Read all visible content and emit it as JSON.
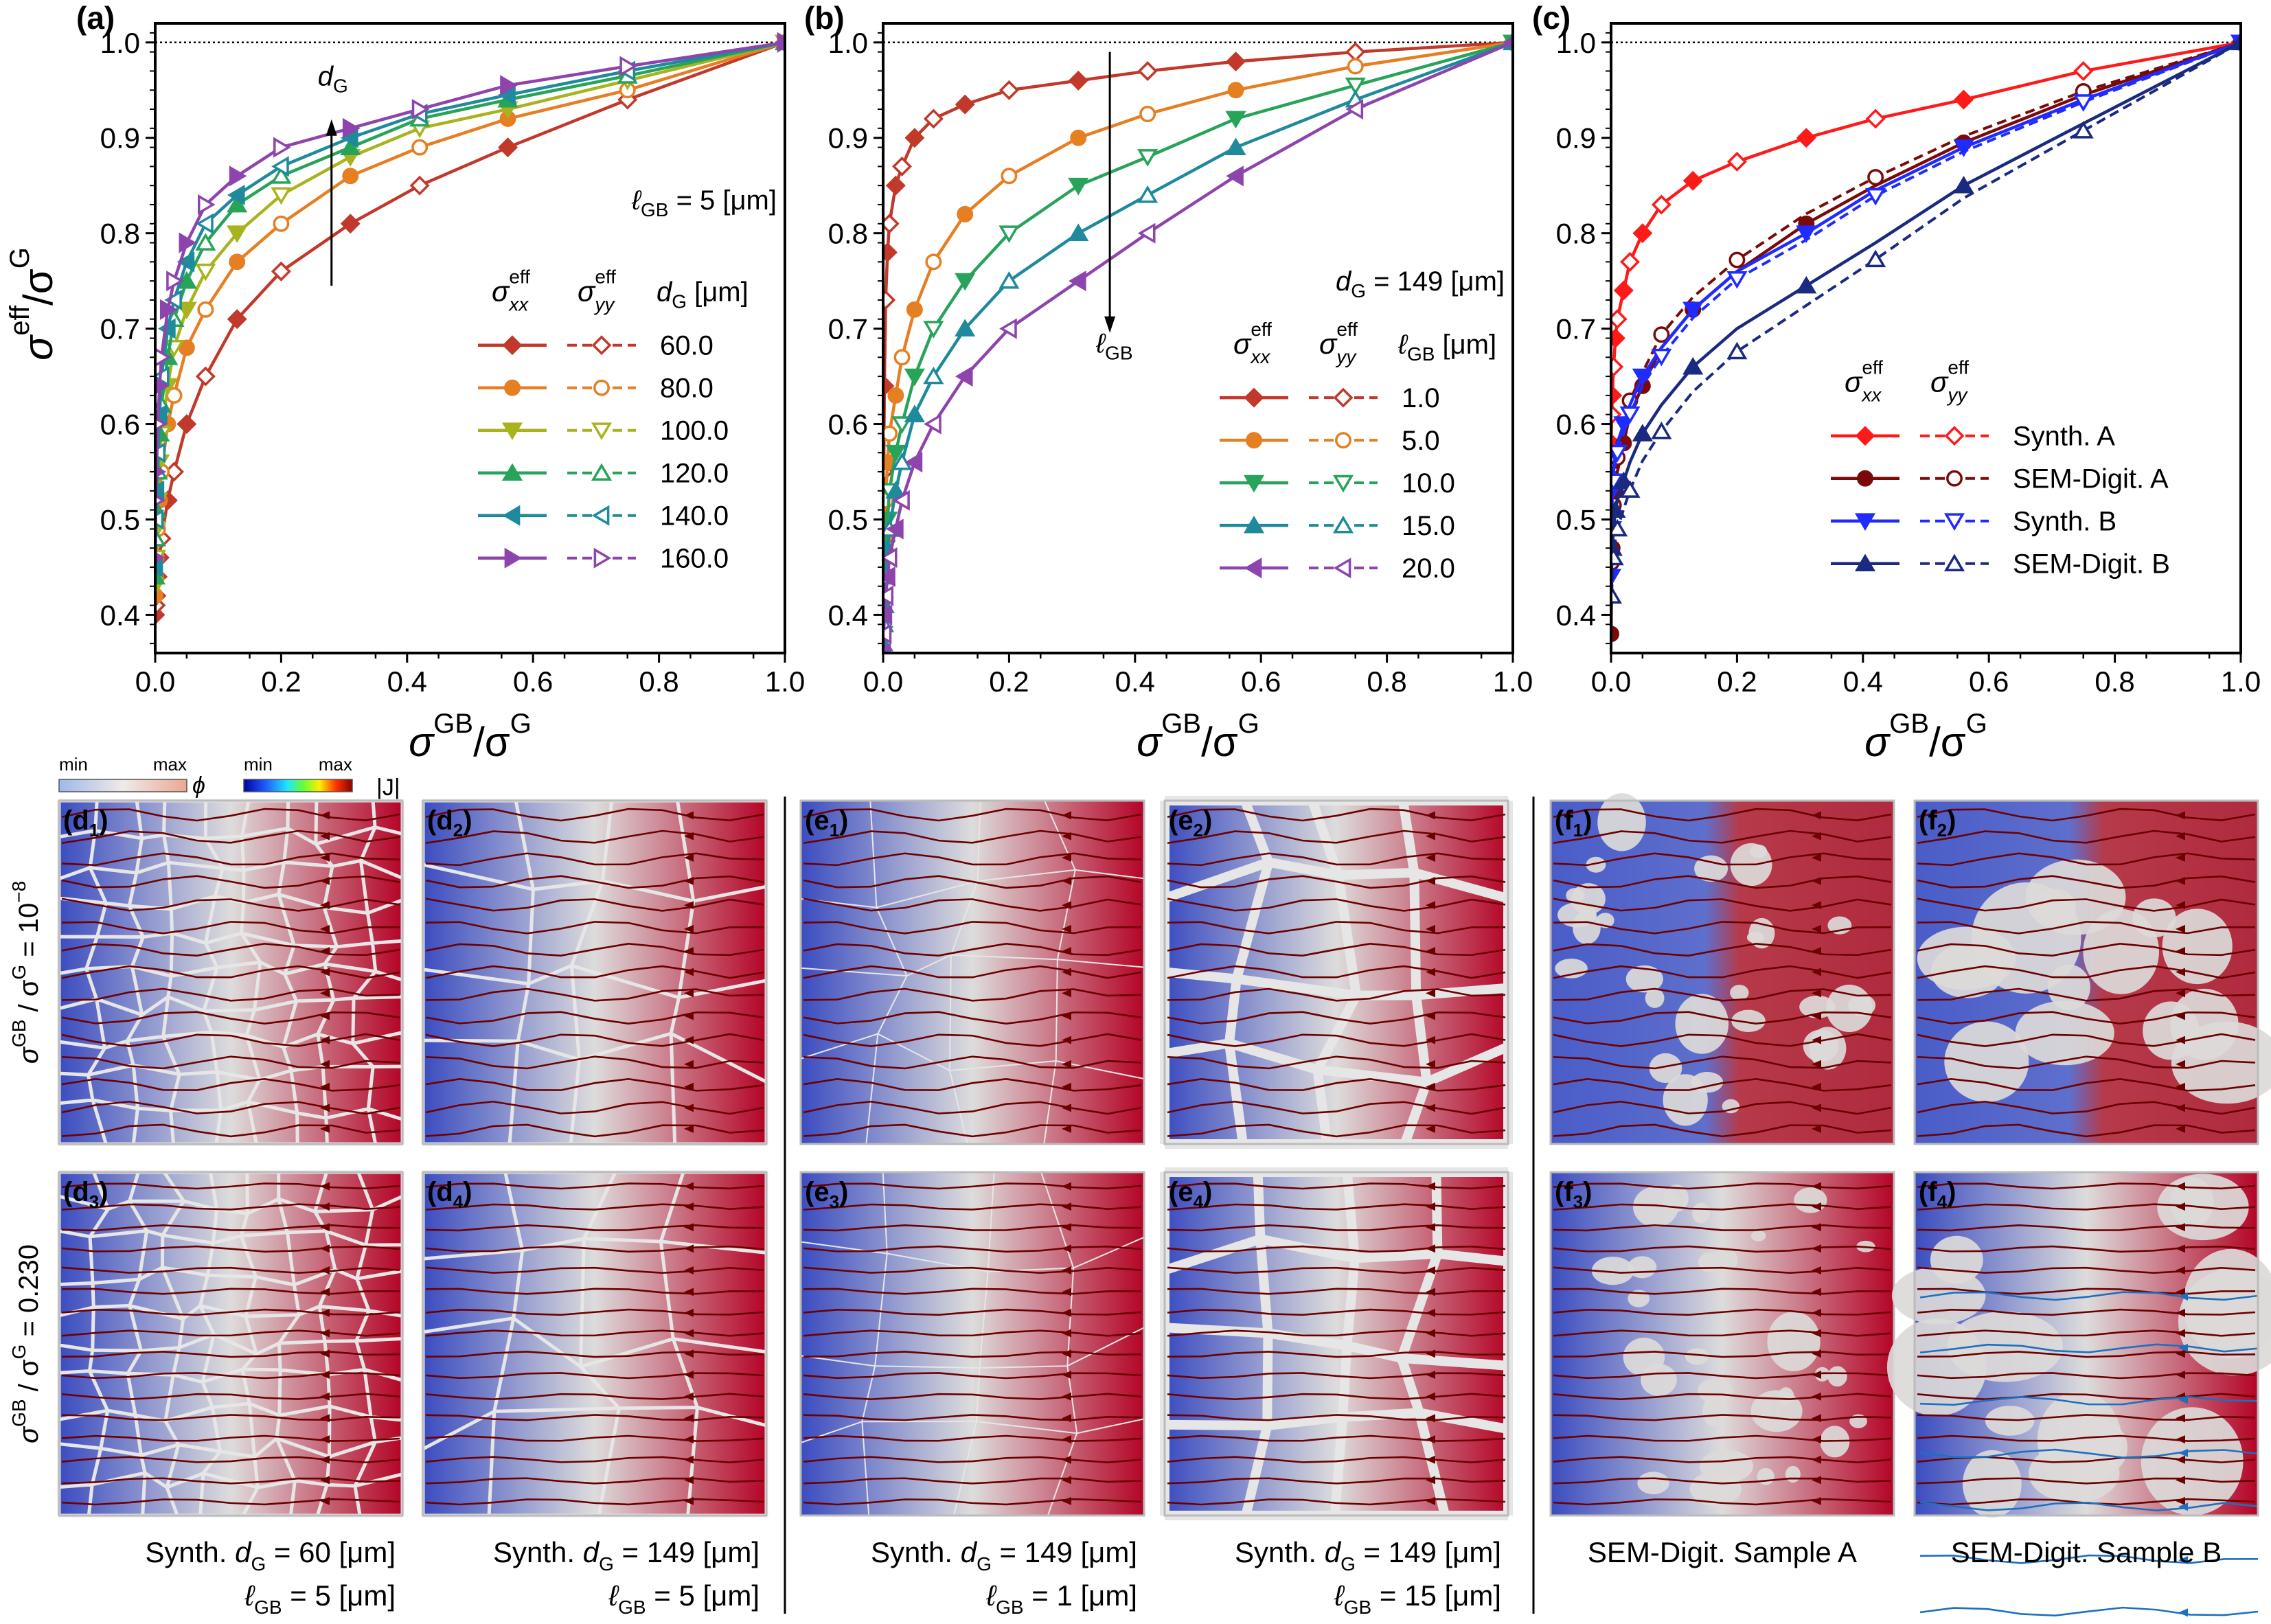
{
  "colors": {
    "red": "#c0392b",
    "orange": "#e67e22",
    "olive": "#a8b31e",
    "green": "#27a35a",
    "teal": "#1f8a9b",
    "purple": "#8e44ad",
    "synthA": "#ff1a1a",
    "semA": "#7a0a0a",
    "synthB": "#1f2bff",
    "semB": "#1a2a80",
    "cold": "#3b4cc0",
    "warm": "#b40426",
    "mid": "#dddcdc",
    "stream": "#6b0000"
  },
  "chart_data": [
    {
      "type": "line",
      "panel": "a",
      "label": "(a)",
      "xlabel_main": "σ",
      "xlabel_sup1": "GB",
      "xlabel_mid": "/σ",
      "xlabel_sup2": "G",
      "ylabel_main": "σ",
      "ylabel_sup1": "eff",
      "ylabel_mid": "/σ",
      "ylabel_sup2": "G",
      "xlim": [
        0,
        1
      ],
      "ylim": [
        0.36,
        1.02
      ],
      "xticks": [
        "0.0",
        "0.2",
        "0.4",
        "0.6",
        "0.8",
        "1.0"
      ],
      "yticks": [
        "0.4",
        "0.5",
        "0.6",
        "0.7",
        "0.8",
        "0.9",
        "1.0"
      ],
      "reference_line": 1.0,
      "arrow_label": "d",
      "arrow_sub": "G",
      "param_text": "ℓ",
      "param_sub": "GB",
      "param_rest": " = 5 [μm]",
      "legend_col1": "σ",
      "legend_col1_sub": "xx",
      "legend_col1_sup": "eff",
      "legend_col2": "σ",
      "legend_col2_sub": "yy",
      "legend_col2_sup": "eff",
      "legend_col3": "d",
      "legend_col3_sub": "G",
      "legend_col3_rest": " [μm]",
      "series": [
        {
          "name": "60.0",
          "color": "red",
          "marker": "diamond",
          "y0": 0.4
        },
        {
          "name": "80.0",
          "color": "orange",
          "marker": "circle",
          "y0": 0.42
        },
        {
          "name": "100.0",
          "color": "olive",
          "marker": "tri-down",
          "y0": 0.43
        },
        {
          "name": "120.0",
          "color": "green",
          "marker": "tri-up",
          "y0": 0.44
        },
        {
          "name": "140.0",
          "color": "teal",
          "marker": "tri-left",
          "y0": 0.45
        },
        {
          "name": "160.0",
          "color": "purple",
          "marker": "tri-right",
          "y0": 0.46
        }
      ],
      "x": [
        0,
        0.001,
        0.002,
        0.004,
        0.007,
        0.01,
        0.02,
        0.03,
        0.05,
        0.08,
        0.13,
        0.2,
        0.31,
        0.42,
        0.56,
        0.75,
        1.0
      ],
      "values": [
        [
          0.4,
          0.41,
          0.42,
          0.44,
          0.46,
          0.48,
          0.52,
          0.55,
          0.6,
          0.65,
          0.71,
          0.76,
          0.81,
          0.85,
          0.89,
          0.94,
          1.0
        ],
        [
          0.42,
          0.44,
          0.46,
          0.49,
          0.52,
          0.55,
          0.6,
          0.63,
          0.68,
          0.72,
          0.77,
          0.81,
          0.86,
          0.89,
          0.92,
          0.95,
          1.0
        ],
        [
          0.43,
          0.46,
          0.49,
          0.52,
          0.56,
          0.59,
          0.64,
          0.68,
          0.72,
          0.76,
          0.8,
          0.84,
          0.88,
          0.91,
          0.93,
          0.96,
          1.0
        ],
        [
          0.44,
          0.48,
          0.51,
          0.55,
          0.59,
          0.62,
          0.67,
          0.71,
          0.75,
          0.79,
          0.83,
          0.86,
          0.89,
          0.92,
          0.94,
          0.965,
          1.0
        ],
        [
          0.45,
          0.5,
          0.53,
          0.57,
          0.61,
          0.65,
          0.7,
          0.73,
          0.77,
          0.81,
          0.84,
          0.87,
          0.9,
          0.925,
          0.945,
          0.97,
          1.0
        ],
        [
          0.46,
          0.52,
          0.55,
          0.6,
          0.64,
          0.67,
          0.72,
          0.75,
          0.79,
          0.83,
          0.86,
          0.89,
          0.91,
          0.93,
          0.955,
          0.975,
          1.0
        ]
      ]
    },
    {
      "type": "line",
      "panel": "b",
      "label": "(b)",
      "xlabel_main": "σ",
      "xlabel_sup1": "GB",
      "xlabel_mid": "/σ",
      "xlabel_sup2": "G",
      "xlim": [
        0,
        1
      ],
      "ylim": [
        0.36,
        1.02
      ],
      "xticks": [
        "0.0",
        "0.2",
        "0.4",
        "0.6",
        "0.8",
        "1.0"
      ],
      "yticks": [
        "0.4",
        "0.5",
        "0.6",
        "0.7",
        "0.8",
        "0.9",
        "1.0"
      ],
      "reference_line": 1.0,
      "arrow_label": "ℓ",
      "arrow_sub": "GB",
      "param_text": "d",
      "param_sub": "G",
      "param_rest": " = 149 [μm]",
      "legend_col1": "σ",
      "legend_col1_sub": "xx",
      "legend_col1_sup": "eff",
      "legend_col2": "σ",
      "legend_col2_sub": "yy",
      "legend_col2_sup": "eff",
      "legend_col3": "ℓ",
      "legend_col3_sub": "GB",
      "legend_col3_rest": " [μm]",
      "series": [
        {
          "name": "1.0",
          "color": "red",
          "marker": "diamond"
        },
        {
          "name": "5.0",
          "color": "orange",
          "marker": "circle"
        },
        {
          "name": "10.0",
          "color": "green",
          "marker": "tri-down"
        },
        {
          "name": "15.0",
          "color": "teal",
          "marker": "tri-up"
        },
        {
          "name": "20.0",
          "color": "purple",
          "marker": "tri-left"
        }
      ],
      "x": [
        0,
        0.001,
        0.002,
        0.004,
        0.007,
        0.01,
        0.02,
        0.03,
        0.05,
        0.08,
        0.13,
        0.2,
        0.31,
        0.42,
        0.56,
        0.75,
        1.0
      ],
      "values": [
        [
          0.42,
          0.55,
          0.64,
          0.73,
          0.78,
          0.81,
          0.85,
          0.87,
          0.9,
          0.92,
          0.935,
          0.95,
          0.96,
          0.97,
          0.98,
          0.99,
          1.0
        ],
        [
          0.4,
          0.44,
          0.48,
          0.52,
          0.56,
          0.59,
          0.63,
          0.67,
          0.72,
          0.77,
          0.82,
          0.86,
          0.9,
          0.925,
          0.95,
          0.975,
          1.0
        ],
        [
          0.38,
          0.41,
          0.44,
          0.47,
          0.5,
          0.53,
          0.57,
          0.6,
          0.65,
          0.7,
          0.75,
          0.8,
          0.85,
          0.88,
          0.92,
          0.955,
          1.0
        ],
        [
          0.37,
          0.39,
          0.41,
          0.44,
          0.47,
          0.49,
          0.53,
          0.56,
          0.61,
          0.65,
          0.7,
          0.75,
          0.8,
          0.84,
          0.89,
          0.94,
          1.0
        ],
        [
          0.36,
          0.38,
          0.4,
          0.42,
          0.44,
          0.46,
          0.49,
          0.52,
          0.56,
          0.6,
          0.65,
          0.7,
          0.75,
          0.8,
          0.86,
          0.93,
          1.0
        ]
      ]
    },
    {
      "type": "line",
      "panel": "c",
      "label": "(c)",
      "xlabel_main": "σ",
      "xlabel_sup1": "GB",
      "xlabel_mid": "/σ",
      "xlabel_sup2": "G",
      "xlim": [
        0,
        1
      ],
      "ylim": [
        0.36,
        1.02
      ],
      "xticks": [
        "0.0",
        "0.2",
        "0.4",
        "0.6",
        "0.8",
        "1.0"
      ],
      "yticks": [
        "0.4",
        "0.5",
        "0.6",
        "0.7",
        "0.8",
        "0.9",
        "1.0"
      ],
      "reference_line": 1.0,
      "legend_col1": "σ",
      "legend_col1_sub": "xx",
      "legend_col1_sup": "eff",
      "legend_col2": "σ",
      "legend_col2_sub": "yy",
      "legend_col2_sup": "eff",
      "series": [
        {
          "name": "Synth. A",
          "color": "synthA",
          "marker": "diamond"
        },
        {
          "name": "SEM-Digit. A",
          "color": "semA",
          "marker": "circle"
        },
        {
          "name": "Synth. B",
          "color": "synthB",
          "marker": "tri-down"
        },
        {
          "name": "SEM-Digit. B",
          "color": "semB",
          "marker": "tri-up"
        }
      ],
      "x": [
        0,
        0.001,
        0.002,
        0.004,
        0.007,
        0.01,
        0.02,
        0.03,
        0.05,
        0.08,
        0.13,
        0.2,
        0.31,
        0.42,
        0.56,
        0.75,
        1.0
      ],
      "values": [
        [
          0.58,
          0.61,
          0.63,
          0.66,
          0.69,
          0.71,
          0.74,
          0.77,
          0.8,
          0.83,
          0.855,
          0.875,
          0.9,
          0.92,
          0.94,
          0.97,
          1.0
        ],
        [
          0.38,
          0.44,
          0.47,
          0.5,
          0.53,
          0.55,
          0.58,
          0.61,
          0.64,
          0.68,
          0.72,
          0.76,
          0.81,
          0.85,
          0.895,
          0.945,
          1.0
        ],
        [
          0.44,
          0.5,
          0.53,
          0.55,
          0.57,
          0.58,
          0.6,
          0.62,
          0.65,
          0.68,
          0.72,
          0.76,
          0.8,
          0.845,
          0.89,
          0.94,
          1.0
        ],
        [
          0.42,
          0.45,
          0.47,
          0.49,
          0.51,
          0.52,
          0.54,
          0.56,
          0.59,
          0.62,
          0.66,
          0.7,
          0.745,
          0.79,
          0.85,
          0.915,
          1.0
        ]
      ]
    }
  ],
  "colorbars": {
    "phi_min": "min",
    "phi_max": "max",
    "phi_symbol": "ϕ",
    "j_min": "min",
    "j_max": "max",
    "j_symbol": "|J|"
  },
  "maps": {
    "row_label_top": "σGB / σG = 10⁻⁸",
    "row_label_top_a": "σ",
    "row_label_top_b": "GB",
    "row_label_top_c": " / σ",
    "row_label_top_d": "G",
    "row_label_top_e": " = 10",
    "row_label_top_f": "−8",
    "row_label_bottom_a": "σ",
    "row_label_bottom_b": "GB",
    "row_label_bottom_c": " / σ",
    "row_label_bottom_d": "G",
    "row_label_bottom_e": " = 0.230",
    "panels": [
      {
        "id": "d1",
        "letter": "d",
        "sub": "1"
      },
      {
        "id": "d2",
        "letter": "d",
        "sub": "2"
      },
      {
        "id": "e1",
        "letter": "e",
        "sub": "1"
      },
      {
        "id": "e2",
        "letter": "e",
        "sub": "2"
      },
      {
        "id": "f1",
        "letter": "f",
        "sub": "1"
      },
      {
        "id": "f2",
        "letter": "f",
        "sub": "2"
      },
      {
        "id": "d3",
        "letter": "d",
        "sub": "3"
      },
      {
        "id": "d4",
        "letter": "d",
        "sub": "4"
      },
      {
        "id": "e3",
        "letter": "e",
        "sub": "3"
      },
      {
        "id": "e4",
        "letter": "e",
        "sub": "4"
      },
      {
        "id": "f3",
        "letter": "f",
        "sub": "3"
      },
      {
        "id": "f4",
        "letter": "f",
        "sub": "4"
      }
    ],
    "captions": [
      {
        "line1_pre": "Synth. ",
        "line1_var": "d",
        "line1_sub": "G",
        "line1_post": " = 60 [μm]",
        "line2_var": "ℓ",
        "line2_sub": "GB",
        "line2_post": " = 5 [μm]"
      },
      {
        "line1_pre": "Synth. ",
        "line1_var": "d",
        "line1_sub": "G",
        "line1_post": " = 149 [μm]",
        "line2_var": "ℓ",
        "line2_sub": "GB",
        "line2_post": " = 5 [μm]"
      },
      {
        "line1_pre": "Synth. ",
        "line1_var": "d",
        "line1_sub": "G",
        "line1_post": " = 149 [μm]",
        "line2_var": "ℓ",
        "line2_sub": "GB",
        "line2_post": " = 1 [μm]"
      },
      {
        "line1_pre": "Synth. ",
        "line1_var": "d",
        "line1_sub": "G",
        "line1_post": " = 149 [μm]",
        "line2_var": "ℓ",
        "line2_sub": "GB",
        "line2_post": " = 15 [μm]"
      },
      {
        "line1_pre": "SEM-Digit. Sample A",
        "line1_var": "",
        "line1_sub": "",
        "line1_post": "",
        "line2_var": "",
        "line2_sub": "",
        "line2_post": ""
      },
      {
        "line1_pre": "SEM-Digit. Sample B",
        "line1_var": "",
        "line1_sub": "",
        "line1_post": "",
        "line2_var": "",
        "line2_sub": "",
        "line2_post": ""
      }
    ]
  }
}
